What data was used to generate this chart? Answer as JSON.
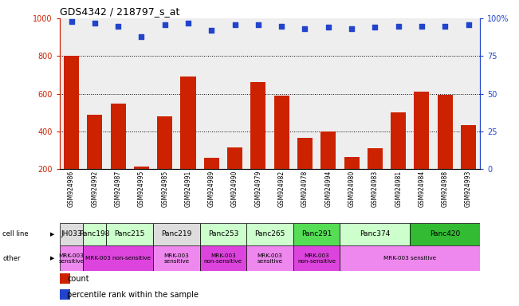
{
  "title": "GDS4342 / 218797_s_at",
  "samples": [
    "GSM924986",
    "GSM924992",
    "GSM924987",
    "GSM924995",
    "GSM924985",
    "GSM924991",
    "GSM924989",
    "GSM924990",
    "GSM924979",
    "GSM924982",
    "GSM924978",
    "GSM924994",
    "GSM924980",
    "GSM924983",
    "GSM924981",
    "GSM924984",
    "GSM924988",
    "GSM924993"
  ],
  "counts": [
    800,
    490,
    550,
    215,
    480,
    690,
    260,
    315,
    660,
    590,
    365,
    400,
    265,
    310,
    500,
    610,
    595,
    435
  ],
  "percentiles": [
    98,
    97,
    95,
    88,
    96,
    97,
    92,
    96,
    96,
    95,
    93,
    94,
    93,
    94,
    95,
    95,
    95,
    96
  ],
  "cell_lines": [
    {
      "name": "JH033",
      "start": 0,
      "end": 1,
      "color": "#dddddd"
    },
    {
      "name": "Panc198",
      "start": 1,
      "end": 2,
      "color": "#ccffcc"
    },
    {
      "name": "Panc215",
      "start": 2,
      "end": 4,
      "color": "#ccffcc"
    },
    {
      "name": "Panc219",
      "start": 4,
      "end": 6,
      "color": "#dddddd"
    },
    {
      "name": "Panc253",
      "start": 6,
      "end": 8,
      "color": "#ccffcc"
    },
    {
      "name": "Panc265",
      "start": 8,
      "end": 10,
      "color": "#ccffcc"
    },
    {
      "name": "Panc291",
      "start": 10,
      "end": 12,
      "color": "#55dd55"
    },
    {
      "name": "Panc374",
      "start": 12,
      "end": 15,
      "color": "#ccffcc"
    },
    {
      "name": "Panc420",
      "start": 15,
      "end": 18,
      "color": "#33bb33"
    }
  ],
  "other_annotations": [
    {
      "label": "MRK-003\nsensitive",
      "start": 0,
      "end": 1,
      "color": "#ee88ee"
    },
    {
      "label": "MRK-003 non-sensitive",
      "start": 1,
      "end": 4,
      "color": "#dd44dd"
    },
    {
      "label": "MRK-003\nsensitive",
      "start": 4,
      "end": 6,
      "color": "#ee88ee"
    },
    {
      "label": "MRK-003\nnon-sensitive",
      "start": 6,
      "end": 8,
      "color": "#dd44dd"
    },
    {
      "label": "MRK-003\nsensitive",
      "start": 8,
      "end": 10,
      "color": "#ee88ee"
    },
    {
      "label": "MRK-003\nnon-sensitive",
      "start": 10,
      "end": 12,
      "color": "#dd44dd"
    },
    {
      "label": "MRK-003 sensitive",
      "start": 12,
      "end": 18,
      "color": "#ee88ee"
    }
  ],
  "bar_color": "#cc2200",
  "dot_color": "#2244cc",
  "ylim_left": [
    200,
    1000
  ],
  "ylim_right": [
    0,
    100
  ],
  "grid_values": [
    400,
    600,
    800
  ],
  "background_color": "#ffffff",
  "ax_bg_color": "#eeeeee"
}
